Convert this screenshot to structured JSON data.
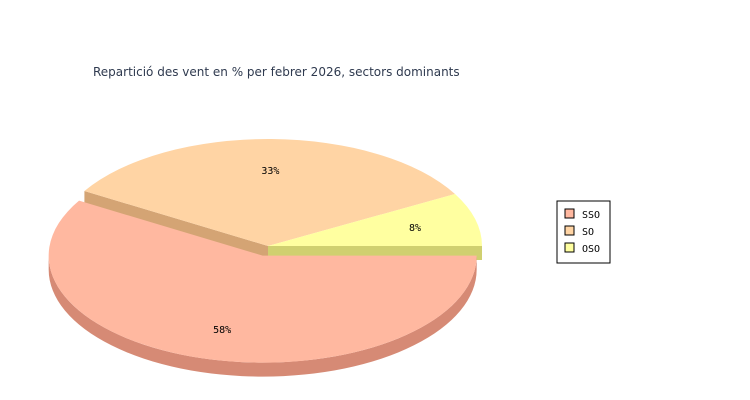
{
  "chart_data": {
    "type": "pie",
    "title": "Repartició des vent en % per febrer 2026, sectors dominants",
    "slices": [
      {
        "name": "SSO",
        "value": 58,
        "label": "58%",
        "color": "#ffb8a0",
        "side_color": "#d68a75"
      },
      {
        "name": "SO",
        "value": 33,
        "label": "33%",
        "color": "#ffd4a4",
        "side_color": "#d4a474"
      },
      {
        "name": "OSO",
        "value": 8,
        "label": "8%",
        "color": "#ffffa0",
        "side_color": "#d0d070"
      }
    ],
    "legend_position": "right",
    "three_d": true,
    "exploded": [
      "SSO"
    ]
  }
}
